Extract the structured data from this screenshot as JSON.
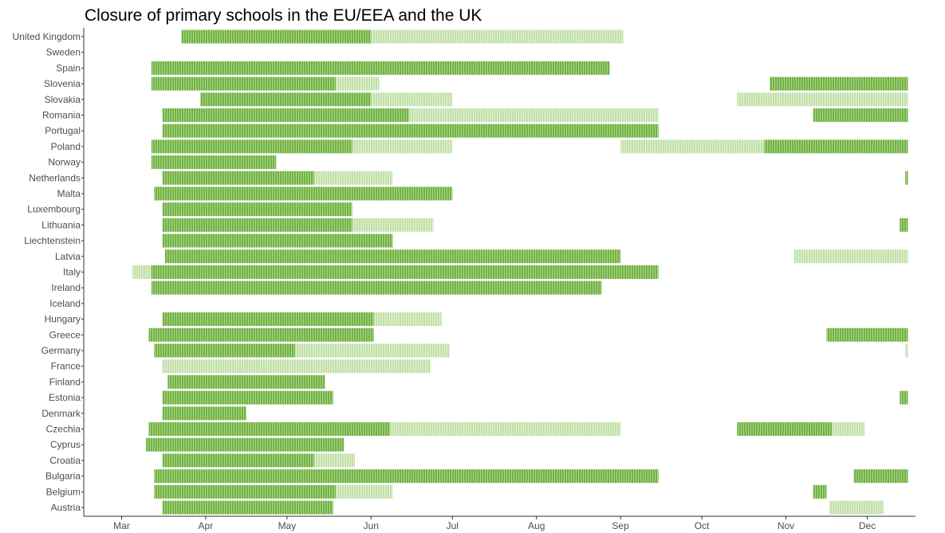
{
  "chart_data": {
    "type": "bar",
    "subtype": "timeline",
    "title": "Closure of primary schools in the EU/EEA and the UK",
    "xlabel": "",
    "ylabel": "",
    "x_axis": {
      "unit": "date",
      "range": [
        "2020-03-01",
        "2020-12-31"
      ],
      "ticks": [
        {
          "date": "2020-03-01",
          "label": "Mar"
        },
        {
          "date": "2020-04-01",
          "label": "Apr"
        },
        {
          "date": "2020-05-01",
          "label": "May"
        },
        {
          "date": "2020-06-01",
          "label": "Jun"
        },
        {
          "date": "2020-07-01",
          "label": "Jul"
        },
        {
          "date": "2020-08-01",
          "label": "Aug"
        },
        {
          "date": "2020-09-01",
          "label": "Sep"
        },
        {
          "date": "2020-10-01",
          "label": "Oct"
        },
        {
          "date": "2020-11-01",
          "label": "Nov"
        },
        {
          "date": "2020-12-01",
          "label": "Dec"
        }
      ]
    },
    "grid": false,
    "legend": "none",
    "colors": {
      "full": "#70b340",
      "partial": "#c2e1a8"
    },
    "countries": [
      {
        "name": "United Kingdom",
        "periods": [
          {
            "start": "2020-03-23",
            "end": "2020-05-31",
            "type": "full"
          },
          {
            "start": "2020-06-01",
            "end": "2020-09-01",
            "type": "partial"
          }
        ]
      },
      {
        "name": "Sweden",
        "periods": []
      },
      {
        "name": "Spain",
        "periods": [
          {
            "start": "2020-03-12",
            "end": "2020-08-27",
            "type": "full"
          }
        ]
      },
      {
        "name": "Slovenia",
        "periods": [
          {
            "start": "2020-03-12",
            "end": "2020-05-18",
            "type": "full"
          },
          {
            "start": "2020-05-19",
            "end": "2020-06-03",
            "type": "partial"
          },
          {
            "start": "2020-10-26",
            "end": "2020-12-15",
            "type": "full"
          }
        ]
      },
      {
        "name": "Slovakia",
        "periods": [
          {
            "start": "2020-03-30",
            "end": "2020-05-31",
            "type": "full"
          },
          {
            "start": "2020-06-01",
            "end": "2020-06-30",
            "type": "partial"
          },
          {
            "start": "2020-10-14",
            "end": "2020-12-15",
            "type": "partial"
          }
        ]
      },
      {
        "name": "Romania",
        "periods": [
          {
            "start": "2020-03-16",
            "end": "2020-06-14",
            "type": "full"
          },
          {
            "start": "2020-06-15",
            "end": "2020-09-14",
            "type": "partial"
          },
          {
            "start": "2020-11-11",
            "end": "2020-12-15",
            "type": "full"
          }
        ]
      },
      {
        "name": "Portugal",
        "periods": [
          {
            "start": "2020-03-16",
            "end": "2020-09-14",
            "type": "full"
          }
        ]
      },
      {
        "name": "Poland",
        "periods": [
          {
            "start": "2020-03-12",
            "end": "2020-05-24",
            "type": "full"
          },
          {
            "start": "2020-05-25",
            "end": "2020-06-30",
            "type": "partial"
          },
          {
            "start": "2020-09-01",
            "end": "2020-10-23",
            "type": "partial"
          },
          {
            "start": "2020-10-24",
            "end": "2020-12-15",
            "type": "full"
          }
        ]
      },
      {
        "name": "Norway",
        "periods": [
          {
            "start": "2020-03-12",
            "end": "2020-04-26",
            "type": "full"
          }
        ]
      },
      {
        "name": "Netherlands",
        "periods": [
          {
            "start": "2020-03-16",
            "end": "2020-05-10",
            "type": "full"
          },
          {
            "start": "2020-05-11",
            "end": "2020-06-08",
            "type": "partial"
          },
          {
            "start": "2020-12-15",
            "end": "2020-12-15",
            "type": "full"
          }
        ]
      },
      {
        "name": "Malta",
        "periods": [
          {
            "start": "2020-03-13",
            "end": "2020-06-30",
            "type": "full"
          }
        ]
      },
      {
        "name": "Luxembourg",
        "periods": [
          {
            "start": "2020-03-16",
            "end": "2020-05-24",
            "type": "full"
          }
        ]
      },
      {
        "name": "Lithuania",
        "periods": [
          {
            "start": "2020-03-16",
            "end": "2020-05-24",
            "type": "full"
          },
          {
            "start": "2020-05-25",
            "end": "2020-06-23",
            "type": "partial"
          },
          {
            "start": "2020-12-13",
            "end": "2020-12-15",
            "type": "full"
          }
        ]
      },
      {
        "name": "Liechtenstein",
        "periods": [
          {
            "start": "2020-03-16",
            "end": "2020-06-08",
            "type": "full"
          }
        ]
      },
      {
        "name": "Latvia",
        "periods": [
          {
            "start": "2020-03-17",
            "end": "2020-08-31",
            "type": "full"
          },
          {
            "start": "2020-11-04",
            "end": "2020-12-15",
            "type": "partial"
          }
        ]
      },
      {
        "name": "Italy",
        "periods": [
          {
            "start": "2020-03-05",
            "end": "2020-03-11",
            "type": "partial"
          },
          {
            "start": "2020-03-12",
            "end": "2020-09-14",
            "type": "full"
          }
        ]
      },
      {
        "name": "Ireland",
        "periods": [
          {
            "start": "2020-03-12",
            "end": "2020-08-24",
            "type": "full"
          }
        ]
      },
      {
        "name": "Iceland",
        "periods": []
      },
      {
        "name": "Hungary",
        "periods": [
          {
            "start": "2020-03-16",
            "end": "2020-06-01",
            "type": "full"
          },
          {
            "start": "2020-06-02",
            "end": "2020-06-26",
            "type": "partial"
          }
        ]
      },
      {
        "name": "Greece",
        "periods": [
          {
            "start": "2020-03-11",
            "end": "2020-06-01",
            "type": "full"
          },
          {
            "start": "2020-11-16",
            "end": "2020-12-15",
            "type": "full"
          }
        ]
      },
      {
        "name": "Germany",
        "periods": [
          {
            "start": "2020-03-13",
            "end": "2020-05-03",
            "type": "full"
          },
          {
            "start": "2020-05-04",
            "end": "2020-06-29",
            "type": "partial"
          },
          {
            "start": "2020-12-15",
            "end": "2020-12-15",
            "type": "partial"
          }
        ]
      },
      {
        "name": "France",
        "periods": [
          {
            "start": "2020-03-16",
            "end": "2020-06-22",
            "type": "partial"
          }
        ]
      },
      {
        "name": "Finland",
        "periods": [
          {
            "start": "2020-03-18",
            "end": "2020-05-14",
            "type": "full"
          }
        ]
      },
      {
        "name": "Estonia",
        "periods": [
          {
            "start": "2020-03-16",
            "end": "2020-05-17",
            "type": "full"
          },
          {
            "start": "2020-12-13",
            "end": "2020-12-15",
            "type": "full"
          }
        ]
      },
      {
        "name": "Denmark",
        "periods": [
          {
            "start": "2020-03-16",
            "end": "2020-04-15",
            "type": "full"
          }
        ]
      },
      {
        "name": "Czechia",
        "periods": [
          {
            "start": "2020-03-11",
            "end": "2020-06-07",
            "type": "full"
          },
          {
            "start": "2020-06-08",
            "end": "2020-08-31",
            "type": "partial"
          },
          {
            "start": "2020-10-14",
            "end": "2020-11-17",
            "type": "full"
          },
          {
            "start": "2020-11-18",
            "end": "2020-11-29",
            "type": "partial"
          }
        ]
      },
      {
        "name": "Cyprus",
        "periods": [
          {
            "start": "2020-03-10",
            "end": "2020-05-21",
            "type": "full"
          }
        ]
      },
      {
        "name": "Croatia",
        "periods": [
          {
            "start": "2020-03-16",
            "end": "2020-05-10",
            "type": "full"
          },
          {
            "start": "2020-05-11",
            "end": "2020-05-25",
            "type": "partial"
          }
        ]
      },
      {
        "name": "Bulgaria",
        "periods": [
          {
            "start": "2020-03-13",
            "end": "2020-09-14",
            "type": "full"
          },
          {
            "start": "2020-11-26",
            "end": "2020-12-15",
            "type": "full"
          }
        ]
      },
      {
        "name": "Belgium",
        "periods": [
          {
            "start": "2020-03-13",
            "end": "2020-05-18",
            "type": "full"
          },
          {
            "start": "2020-05-19",
            "end": "2020-06-08",
            "type": "partial"
          },
          {
            "start": "2020-11-11",
            "end": "2020-11-15",
            "type": "full"
          }
        ]
      },
      {
        "name": "Austria",
        "periods": [
          {
            "start": "2020-03-16",
            "end": "2020-05-17",
            "type": "full"
          },
          {
            "start": "2020-11-17",
            "end": "2020-12-06",
            "type": "partial"
          }
        ]
      }
    ]
  }
}
